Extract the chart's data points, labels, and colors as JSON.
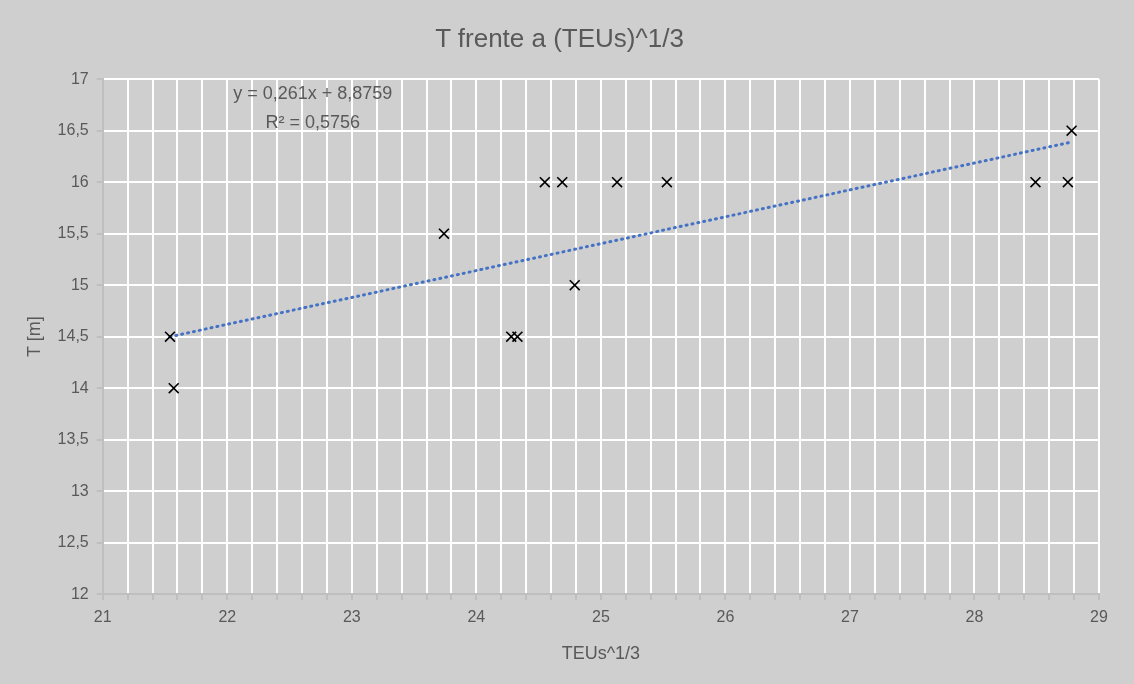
{
  "chart_data": {
    "type": "scatter",
    "title": "T frente a (TEUs)^1/3",
    "xlabel": "TEUs^1/3",
    "ylabel": "T [m]",
    "annotations": [
      "y = 0,261x + 8,8759",
      "R² = 0,5756"
    ],
    "series": [
      {
        "type": "scatter",
        "color": "#000000",
        "marker": "cross",
        "x": [
          21.54,
          21.57,
          23.74,
          24.28,
          24.33,
          24.55,
          24.69,
          24.79,
          25.13,
          25.53,
          28.49,
          28.75,
          28.78
        ],
        "values": [
          14.5,
          14,
          15.5,
          14.5,
          14.5,
          16,
          16,
          15,
          16,
          16,
          16,
          16,
          16.5
        ]
      },
      {
        "type": "line",
        "color": "#4472c4",
        "line_style": "dotted",
        "marker": "none",
        "x": [
          21.54,
          28.78
        ],
        "values": [
          14.5,
          16.39
        ]
      }
    ],
    "xlim": [
      21,
      29
    ],
    "xticks": [
      21,
      {
        "value": 21.2,
        "label": null
      },
      {
        "value": 21.4,
        "label": null
      },
      {
        "value": 21.6,
        "label": null
      },
      {
        "value": 21.8,
        "label": null
      },
      22,
      {
        "value": 22.2,
        "label": null
      },
      {
        "value": 22.4,
        "label": null
      },
      {
        "value": 22.6,
        "label": null
      },
      {
        "value": 22.8,
        "label": null
      },
      23,
      {
        "value": 23.2,
        "label": null
      },
      {
        "value": 23.4,
        "label": null
      },
      {
        "value": 23.6,
        "label": null
      },
      {
        "value": 23.8,
        "label": null
      },
      24,
      {
        "value": 24.2,
        "label": null
      },
      {
        "value": 24.4,
        "label": null
      },
      {
        "value": 24.6,
        "label": null
      },
      {
        "value": 24.8,
        "label": null
      },
      25,
      {
        "value": 25.2,
        "label": null
      },
      {
        "value": 25.4,
        "label": null
      },
      {
        "value": 25.6,
        "label": null
      },
      {
        "value": 25.8,
        "label": null
      },
      26,
      {
        "value": 26.2,
        "label": null
      },
      {
        "value": 26.4,
        "label": null
      },
      {
        "value": 26.6,
        "label": null
      },
      {
        "value": 26.8,
        "label": null
      },
      27,
      {
        "value": 27.2,
        "label": null
      },
      {
        "value": 27.4,
        "label": null
      },
      {
        "value": 27.6,
        "label": null
      },
      {
        "value": 27.8,
        "label": null
      },
      28,
      {
        "value": 28.2,
        "label": null
      },
      {
        "value": 28.4,
        "label": null
      },
      {
        "value": 28.6,
        "label": null
      },
      {
        "value": 28.8,
        "label": null
      },
      29
    ],
    "ylim": [
      12,
      17
    ],
    "yticks": [
      12,
      {
        "value": 12.5,
        "label": "12,5"
      },
      13,
      {
        "value": 13.5,
        "label": "13,5"
      },
      14,
      {
        "value": 14.5,
        "label": "14,5"
      },
      15,
      {
        "value": 15.5,
        "label": "15,5"
      },
      16,
      {
        "value": 16.5,
        "label": "16,5"
      },
      17
    ],
    "grid": true,
    "legend": false
  }
}
